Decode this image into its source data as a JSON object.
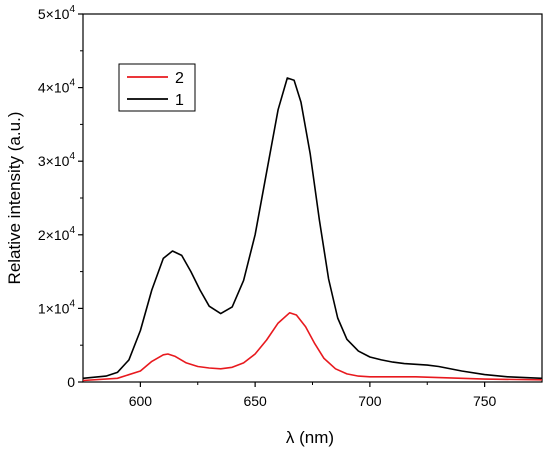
{
  "chart_data": {
    "type": "line",
    "title": "",
    "xlabel": "λ (nm)",
    "ylabel": "Relative intensity (a.u.)",
    "xlim": [
      575,
      775
    ],
    "ylim": [
      0,
      50000
    ],
    "x_ticks": [
      {
        "value": 600,
        "label": "600"
      },
      {
        "value": 650,
        "label": "650"
      },
      {
        "value": 700,
        "label": "700"
      },
      {
        "value": 750,
        "label": "750"
      }
    ],
    "y_ticks": [
      {
        "value": 0,
        "mant": "0",
        "exp": ""
      },
      {
        "value": 10000,
        "mant": "1×10",
        "exp": "4"
      },
      {
        "value": 20000,
        "mant": "2×10",
        "exp": "4"
      },
      {
        "value": 30000,
        "mant": "3×10",
        "exp": "4"
      },
      {
        "value": 40000,
        "mant": "4×10",
        "exp": "4"
      },
      {
        "value": 50000,
        "mant": "5×10",
        "exp": "4"
      }
    ],
    "grid": false,
    "legend_position": "top-left",
    "series": [
      {
        "name": "2",
        "color": "#e8191e",
        "points": [
          [
            575,
            200
          ],
          [
            590,
            500
          ],
          [
            600,
            1500
          ],
          [
            605,
            2800
          ],
          [
            610,
            3700
          ],
          [
            612,
            3800
          ],
          [
            615,
            3500
          ],
          [
            620,
            2600
          ],
          [
            625,
            2100
          ],
          [
            630,
            1900
          ],
          [
            635,
            1800
          ],
          [
            640,
            2000
          ],
          [
            645,
            2600
          ],
          [
            650,
            3800
          ],
          [
            655,
            5700
          ],
          [
            660,
            8000
          ],
          [
            665,
            9400
          ],
          [
            668,
            9100
          ],
          [
            672,
            7500
          ],
          [
            676,
            5200
          ],
          [
            680,
            3200
          ],
          [
            685,
            1800
          ],
          [
            690,
            1100
          ],
          [
            695,
            800
          ],
          [
            700,
            700
          ],
          [
            710,
            700
          ],
          [
            720,
            700
          ],
          [
            730,
            600
          ],
          [
            750,
            400
          ],
          [
            775,
            300
          ]
        ]
      },
      {
        "name": "1",
        "color": "#000000",
        "points": [
          [
            575,
            500
          ],
          [
            585,
            800
          ],
          [
            590,
            1300
          ],
          [
            595,
            3000
          ],
          [
            600,
            7000
          ],
          [
            605,
            12500
          ],
          [
            610,
            16800
          ],
          [
            614,
            17800
          ],
          [
            618,
            17200
          ],
          [
            622,
            15000
          ],
          [
            626,
            12500
          ],
          [
            630,
            10300
          ],
          [
            635,
            9300
          ],
          [
            640,
            10200
          ],
          [
            645,
            13800
          ],
          [
            650,
            20000
          ],
          [
            655,
            28500
          ],
          [
            660,
            37000
          ],
          [
            664,
            41300
          ],
          [
            667,
            41000
          ],
          [
            670,
            38000
          ],
          [
            674,
            31000
          ],
          [
            678,
            22000
          ],
          [
            682,
            14000
          ],
          [
            686,
            8700
          ],
          [
            690,
            5800
          ],
          [
            695,
            4200
          ],
          [
            700,
            3400
          ],
          [
            705,
            3000
          ],
          [
            710,
            2700
          ],
          [
            715,
            2500
          ],
          [
            720,
            2400
          ],
          [
            725,
            2300
          ],
          [
            730,
            2100
          ],
          [
            740,
            1500
          ],
          [
            750,
            1000
          ],
          [
            760,
            700
          ],
          [
            775,
            500
          ]
        ]
      }
    ]
  }
}
